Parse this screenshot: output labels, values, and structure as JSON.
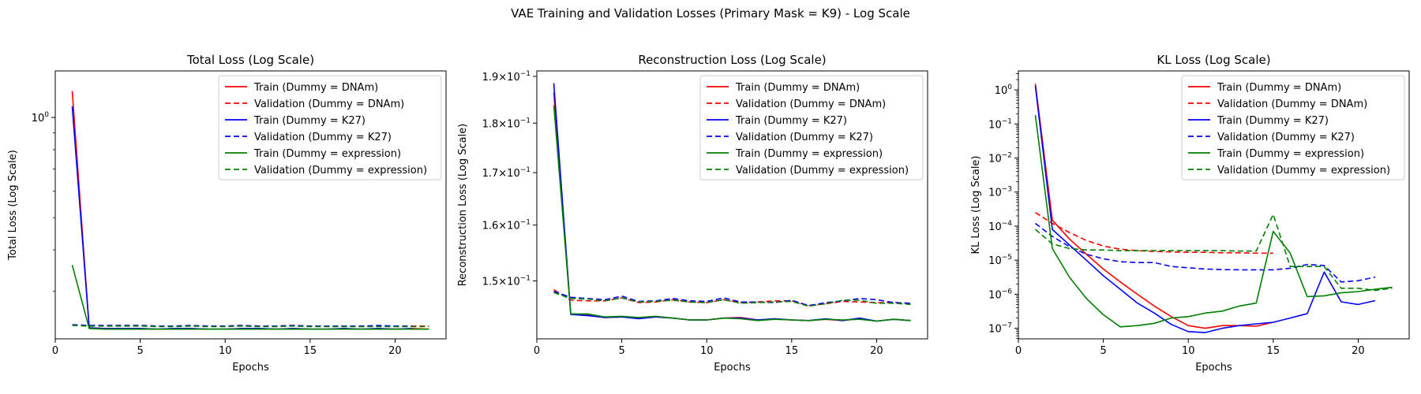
{
  "figure": {
    "suptitle": "VAE Training and Validation Losses (Primary Mask = K9) - Log Scale"
  },
  "legend_labels": [
    "Train (Dummy = DNAm)",
    "Validation (Dummy = DNAm)",
    "Train (Dummy = K27)",
    "Validation (Dummy = K27)",
    "Train (Dummy = expression)",
    "Validation (Dummy = expression)"
  ],
  "colors": {
    "DNAm": "#ff0000",
    "K27": "#0000ff",
    "expression": "#008000"
  },
  "chart_data": [
    {
      "type": "line",
      "title": "Total Loss (Log Scale)",
      "xlabel": "Epochs",
      "ylabel": "Total Loss (Log Scale)",
      "yscale": "log",
      "xlim": [
        0,
        23
      ],
      "ylim": [
        0.216,
        1.38
      ],
      "xticks": [
        0,
        5,
        10,
        15,
        20
      ],
      "yticks": [
        {
          "value": 1.0,
          "label": "10^0"
        }
      ],
      "legend_loc": "upper right",
      "grid": false,
      "series": [
        {
          "name": "Train (Dummy = DNAm)",
          "color": "#ff0000",
          "dash": "solid",
          "x": [
            1,
            2,
            3,
            4,
            5,
            6,
            7,
            8,
            9,
            10,
            11,
            12,
            13,
            14,
            15,
            16,
            17,
            18,
            19,
            20,
            21,
            22
          ],
          "y": [
            1.2,
            0.233,
            0.232,
            0.232,
            0.232,
            0.231,
            0.232,
            0.232,
            0.231,
            0.231,
            0.232,
            0.232,
            0.231,
            0.232,
            0.231,
            0.231,
            0.232,
            0.231,
            0.232,
            0.231,
            0.232,
            0.231
          ]
        },
        {
          "name": "Validation (Dummy = DNAm)",
          "color": "#ff0000",
          "dash": "dashed",
          "x": [
            1,
            2,
            3,
            4,
            5,
            6,
            7,
            8,
            9,
            10,
            11,
            12,
            13,
            14,
            15,
            16,
            17,
            18,
            19,
            20,
            21,
            22
          ],
          "y": [
            0.238,
            0.237,
            0.237,
            0.237,
            0.237,
            0.236,
            0.236,
            0.237,
            0.236,
            0.236,
            0.237,
            0.236,
            0.236,
            0.237,
            0.236,
            0.236,
            0.236,
            0.236,
            0.236,
            0.236,
            0.236,
            0.236
          ]
        },
        {
          "name": "Train (Dummy = K27)",
          "color": "#0000ff",
          "dash": "solid",
          "x": [
            1,
            2,
            3,
            4,
            5,
            6,
            7,
            8,
            9,
            10,
            11,
            12,
            13,
            14,
            15,
            16,
            17,
            18,
            19,
            20,
            21
          ],
          "y": [
            1.08,
            0.233,
            0.232,
            0.232,
            0.232,
            0.231,
            0.232,
            0.232,
            0.231,
            0.231,
            0.232,
            0.232,
            0.231,
            0.232,
            0.231,
            0.231,
            0.232,
            0.231,
            0.232,
            0.231,
            0.232
          ]
        },
        {
          "name": "Validation (Dummy = K27)",
          "color": "#0000ff",
          "dash": "dashed",
          "x": [
            1,
            2,
            3,
            4,
            5,
            6,
            7,
            8,
            9,
            10,
            11,
            12,
            13,
            14,
            15,
            16,
            17,
            18,
            19,
            20,
            21
          ],
          "y": [
            0.238,
            0.237,
            0.237,
            0.237,
            0.237,
            0.236,
            0.236,
            0.237,
            0.236,
            0.236,
            0.237,
            0.236,
            0.236,
            0.237,
            0.236,
            0.236,
            0.236,
            0.236,
            0.237,
            0.236,
            0.236
          ]
        },
        {
          "name": "Train (Dummy = expression)",
          "color": "#008000",
          "dash": "solid",
          "x": [
            1,
            2,
            3,
            4,
            5,
            6,
            7,
            8,
            9,
            10,
            11,
            12,
            13,
            14,
            15,
            16,
            17,
            18,
            19,
            20,
            21,
            22
          ],
          "y": [
            0.36,
            0.232,
            0.231,
            0.231,
            0.231,
            0.231,
            0.231,
            0.231,
            0.231,
            0.231,
            0.231,
            0.231,
            0.231,
            0.231,
            0.231,
            0.231,
            0.231,
            0.231,
            0.231,
            0.231,
            0.231,
            0.231
          ]
        },
        {
          "name": "Validation (Dummy = expression)",
          "color": "#008000",
          "dash": "dashed",
          "x": [
            1,
            2,
            3,
            4,
            5,
            6,
            7,
            8,
            9,
            10,
            11,
            12,
            13,
            14,
            15,
            16,
            17,
            18,
            19,
            20,
            21,
            22
          ],
          "y": [
            0.237,
            0.236,
            0.236,
            0.236,
            0.236,
            0.235,
            0.235,
            0.236,
            0.235,
            0.235,
            0.236,
            0.235,
            0.235,
            0.236,
            0.235,
            0.235,
            0.235,
            0.235,
            0.235,
            0.235,
            0.235,
            0.235
          ]
        }
      ]
    },
    {
      "type": "line",
      "title": "Reconstruction Loss (Log Scale)",
      "xlabel": "Epochs",
      "ylabel": "Reconstruction Loss (Log Scale)",
      "yscale": "log",
      "xlim": [
        0,
        23
      ],
      "ylim": [
        0.1403,
        0.1912
      ],
      "xticks": [
        0,
        5,
        10,
        15,
        20
      ],
      "yticks": [
        {
          "value": 0.15,
          "label": "1.5×10^-1"
        },
        {
          "value": 0.16,
          "label": "1.6×10^-1"
        },
        {
          "value": 0.17,
          "label": "1.7×10^-1"
        },
        {
          "value": 0.18,
          "label": "1.8×10^-1"
        },
        {
          "value": 0.19,
          "label": "1.9×10^-1"
        }
      ],
      "legend_loc": "upper right",
      "grid": false,
      "series": [
        {
          "name": "Train (Dummy = DNAm)",
          "color": "#ff0000",
          "dash": "solid",
          "x": [
            1,
            2,
            3,
            4,
            5,
            6,
            7,
            8,
            9,
            10,
            11,
            12,
            13,
            14,
            15,
            16,
            17,
            18,
            19,
            20,
            21,
            22
          ],
          "y": [
            0.1865,
            0.1444,
            0.1442,
            0.1438,
            0.1439,
            0.1437,
            0.1439,
            0.1437,
            0.1434,
            0.1434,
            0.1437,
            0.1438,
            0.1434,
            0.1436,
            0.1434,
            0.1433,
            0.1435,
            0.1433,
            0.1436,
            0.1432,
            0.1435,
            0.1433
          ]
        },
        {
          "name": "Validation (Dummy = DNAm)",
          "color": "#ff0000",
          "dash": "dashed",
          "x": [
            1,
            2,
            3,
            4,
            5,
            6,
            7,
            8,
            9,
            10,
            11,
            12,
            13,
            14,
            15,
            16,
            17,
            18,
            19,
            20,
            21,
            22
          ],
          "y": [
            0.1485,
            0.1467,
            0.1466,
            0.1466,
            0.1471,
            0.1463,
            0.1464,
            0.1468,
            0.1464,
            0.1463,
            0.1468,
            0.1463,
            0.1464,
            0.1466,
            0.1466,
            0.1458,
            0.1461,
            0.1465,
            0.1464,
            0.1463,
            0.1463,
            0.1462
          ]
        },
        {
          "name": "Train (Dummy = K27)",
          "color": "#0000ff",
          "dash": "solid",
          "x": [
            1,
            2,
            3,
            4,
            5,
            6,
            7,
            8,
            9,
            10,
            11,
            12,
            13,
            14,
            15,
            16,
            17,
            18,
            19,
            20,
            21,
            22
          ],
          "y": [
            0.1885,
            0.1443,
            0.1441,
            0.1438,
            0.1439,
            0.1436,
            0.1439,
            0.1437,
            0.1434,
            0.1434,
            0.1437,
            0.1437,
            0.1434,
            0.1436,
            0.1434,
            0.1433,
            0.1436,
            0.1433,
            0.1437,
            0.1432,
            0.1435,
            0.1433
          ]
        },
        {
          "name": "Validation (Dummy = K27)",
          "color": "#0000ff",
          "dash": "dashed",
          "x": [
            1,
            2,
            3,
            4,
            5,
            6,
            7,
            8,
            9,
            10,
            11,
            12,
            13,
            14,
            15,
            16,
            17,
            18,
            19,
            20,
            21,
            22
          ],
          "y": [
            0.1482,
            0.1472,
            0.147,
            0.1468,
            0.1474,
            0.1465,
            0.1466,
            0.147,
            0.1466,
            0.1465,
            0.1471,
            0.1464,
            0.1464,
            0.1463,
            0.1467,
            0.1458,
            0.1463,
            0.1466,
            0.147,
            0.1468,
            0.1463,
            0.1462
          ]
        },
        {
          "name": "Train (Dummy = expression)",
          "color": "#008000",
          "dash": "solid",
          "x": [
            1,
            2,
            3,
            4,
            5,
            6,
            7,
            8,
            9,
            10,
            11,
            12,
            13,
            14,
            15,
            16,
            17,
            18,
            19,
            20,
            21,
            22
          ],
          "y": [
            0.1838,
            0.1444,
            0.1444,
            0.1439,
            0.144,
            0.1438,
            0.144,
            0.1437,
            0.1434,
            0.1434,
            0.1437,
            0.1436,
            0.1433,
            0.1435,
            0.1434,
            0.1433,
            0.1435,
            0.1434,
            0.1435,
            0.1432,
            0.1435,
            0.1433
          ]
        },
        {
          "name": "Validation (Dummy = expression)",
          "color": "#008000",
          "dash": "dashed",
          "x": [
            1,
            2,
            3,
            4,
            5,
            6,
            7,
            8,
            9,
            10,
            11,
            12,
            13,
            14,
            15,
            16,
            17,
            18,
            19,
            20,
            21,
            22
          ],
          "y": [
            0.148,
            0.147,
            0.1469,
            0.1466,
            0.1471,
            0.1464,
            0.1465,
            0.1467,
            0.1464,
            0.1463,
            0.1468,
            0.1462,
            0.1463,
            0.1464,
            0.1465,
            0.1457,
            0.1461,
            0.1467,
            0.1467,
            0.1462,
            0.1462,
            0.146
          ]
        }
      ]
    },
    {
      "type": "line",
      "title": "KL Loss (Log Scale)",
      "xlabel": "Epochs",
      "ylabel": "KL Loss (Log Scale)",
      "yscale": "log",
      "xlim": [
        0,
        23
      ],
      "ylim": [
        4.9e-08,
        3.6
      ],
      "xticks": [
        0,
        5,
        10,
        15,
        20
      ],
      "yticks": [
        {
          "value": 1e-07,
          "label": "10^-7"
        },
        {
          "value": 1e-06,
          "label": "10^-6"
        },
        {
          "value": 1e-05,
          "label": "10^-5"
        },
        {
          "value": 0.0001,
          "label": "10^-4"
        },
        {
          "value": 0.001,
          "label": "10^-3"
        },
        {
          "value": 0.01,
          "label": "10^-2"
        },
        {
          "value": 0.1,
          "label": "10^-1"
        },
        {
          "value": 1,
          "label": "10^0"
        }
      ],
      "legend_loc": "upper right",
      "grid": false,
      "series": [
        {
          "name": "Train (Dummy = DNAm)",
          "color": "#ff0000",
          "dash": "solid",
          "x": [
            1,
            2,
            3,
            4,
            5,
            6,
            7,
            8,
            9,
            10,
            11,
            12,
            13,
            14,
            15
          ],
          "y": [
            1.5,
            0.00015,
            4.2e-05,
            1.5e-05,
            5.5e-06,
            2.3e-06,
            1e-06,
            4.5e-07,
            2.2e-07,
            1.2e-07,
            1e-07,
            1.2e-07,
            1.2e-07,
            1.15e-07,
            1.5e-07
          ]
        },
        {
          "name": "Validation (Dummy = DNAm)",
          "color": "#ff0000",
          "dash": "dashed",
          "x": [
            1,
            2,
            3,
            4,
            5,
            6,
            7,
            8,
            9,
            10,
            11,
            12,
            13,
            14,
            15
          ],
          "y": [
            0.00025,
            0.00012,
            6.5e-05,
            3.8e-05,
            2.6e-05,
            2.1e-05,
            1.9e-05,
            1.8e-05,
            1.75e-05,
            1.7e-05,
            1.7e-05,
            1.65e-05,
            1.65e-05,
            1.6e-05,
            1.6e-05
          ]
        },
        {
          "name": "Train (Dummy = K27)",
          "color": "#0000ff",
          "dash": "solid",
          "x": [
            1,
            2,
            3,
            4,
            5,
            6,
            7,
            8,
            9,
            10,
            11,
            12,
            13,
            14,
            15,
            16,
            17,
            18,
            19,
            20,
            21
          ],
          "y": [
            1.3,
            8e-05,
            2.8e-05,
            1e-05,
            3.5e-06,
            1.4e-06,
            5.5e-07,
            2.8e-07,
            1.3e-07,
            8e-08,
            7.5e-08,
            1e-07,
            1.2e-07,
            1.35e-07,
            1.5e-07,
            2e-07,
            2.7e-07,
            4.5e-06,
            6e-07,
            5e-07,
            6.5e-07
          ]
        },
        {
          "name": "Validation (Dummy = K27)",
          "color": "#0000ff",
          "dash": "dashed",
          "x": [
            1,
            2,
            3,
            4,
            5,
            6,
            7,
            8,
            9,
            10,
            11,
            12,
            13,
            14,
            15,
            16,
            17,
            18,
            19,
            20,
            21
          ],
          "y": [
            0.00012,
            5e-05,
            2.5e-05,
            1.5e-05,
            1.1e-05,
            9e-06,
            8.5e-06,
            8.5e-06,
            6.5e-06,
            6e-06,
            5.5e-06,
            5.3e-06,
            5.2e-06,
            5.2e-06,
            5.2e-06,
            5.8e-06,
            7.5e-06,
            7e-06,
            2.3e-06,
            2.5e-06,
            3.2e-06
          ]
        },
        {
          "name": "Train (Dummy = expression)",
          "color": "#008000",
          "dash": "solid",
          "x": [
            1,
            2,
            3,
            4,
            5,
            6,
            7,
            8,
            9,
            10,
            11,
            12,
            13,
            14,
            15,
            16,
            17,
            18,
            19,
            20,
            21,
            22
          ],
          "y": [
            0.18,
            2.2e-05,
            3.2e-06,
            7.5e-07,
            2.5e-07,
            1.1e-07,
            1.2e-07,
            1.4e-07,
            2e-07,
            2.2e-07,
            2.8e-07,
            3.2e-07,
            4.5e-07,
            5.5e-07,
            7e-05,
            1.6e-05,
            8.5e-07,
            9e-07,
            1.1e-06,
            1.2e-06,
            1.4e-06,
            1.6e-06
          ]
        },
        {
          "name": "Validation (Dummy = expression)",
          "color": "#008000",
          "dash": "dashed",
          "x": [
            1,
            2,
            3,
            4,
            5,
            6,
            7,
            8,
            9,
            10,
            11,
            12,
            13,
            14,
            15,
            16,
            17,
            18,
            19,
            20,
            21,
            22
          ],
          "y": [
            8e-05,
            3e-05,
            2.2e-05,
            2e-05,
            2e-05,
            1.9e-05,
            1.9e-05,
            1.9e-05,
            1.9e-05,
            1.9e-05,
            1.9e-05,
            1.9e-05,
            1.85e-05,
            1.85e-05,
            0.00022,
            6.5e-06,
            6.5e-06,
            6.5e-06,
            1.5e-06,
            1.5e-06,
            1.3e-06,
            1.5e-06
          ]
        }
      ]
    }
  ]
}
